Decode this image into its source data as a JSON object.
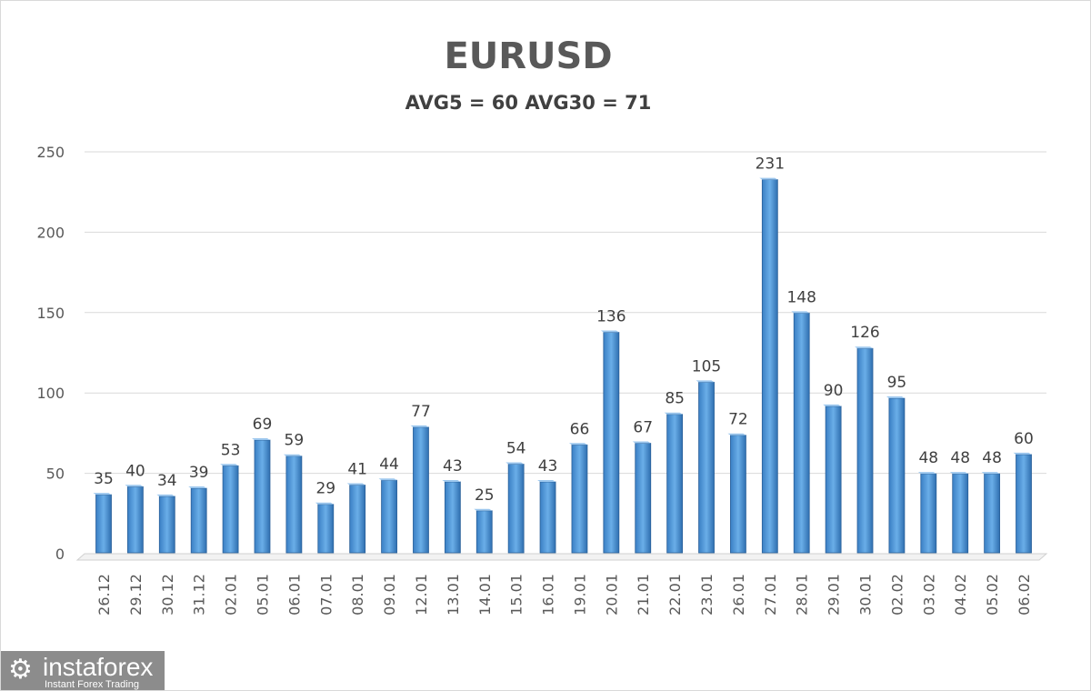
{
  "chart_data": {
    "type": "bar",
    "title": "EURUSD",
    "subtitle": "AVG5 = 60 AVG30 = 71",
    "categories": [
      "26.12",
      "29.12",
      "30.12",
      "31.12",
      "02.01",
      "05.01",
      "06.01",
      "07.01",
      "08.01",
      "09.01",
      "12.01",
      "13.01",
      "14.01",
      "15.01",
      "16.01",
      "19.01",
      "20.01",
      "21.01",
      "22.01",
      "23.01",
      "26.01",
      "27.01",
      "28.01",
      "29.01",
      "30.01",
      "02.02",
      "03.02",
      "04.02",
      "05.02",
      "06.02"
    ],
    "values": [
      35,
      40,
      34,
      39,
      53,
      69,
      59,
      29,
      41,
      44,
      77,
      43,
      25,
      54,
      43,
      66,
      136,
      67,
      85,
      105,
      72,
      231,
      148,
      90,
      126,
      95,
      48,
      48,
      48,
      60
    ],
    "ylim": [
      0,
      250
    ],
    "yticks": [
      0,
      50,
      100,
      150,
      200,
      250
    ],
    "grid": true,
    "bar_color": "#5b9bd5",
    "data_labels": true
  },
  "logo": {
    "name": "instaforex",
    "tagline": "Instant Forex Trading"
  }
}
